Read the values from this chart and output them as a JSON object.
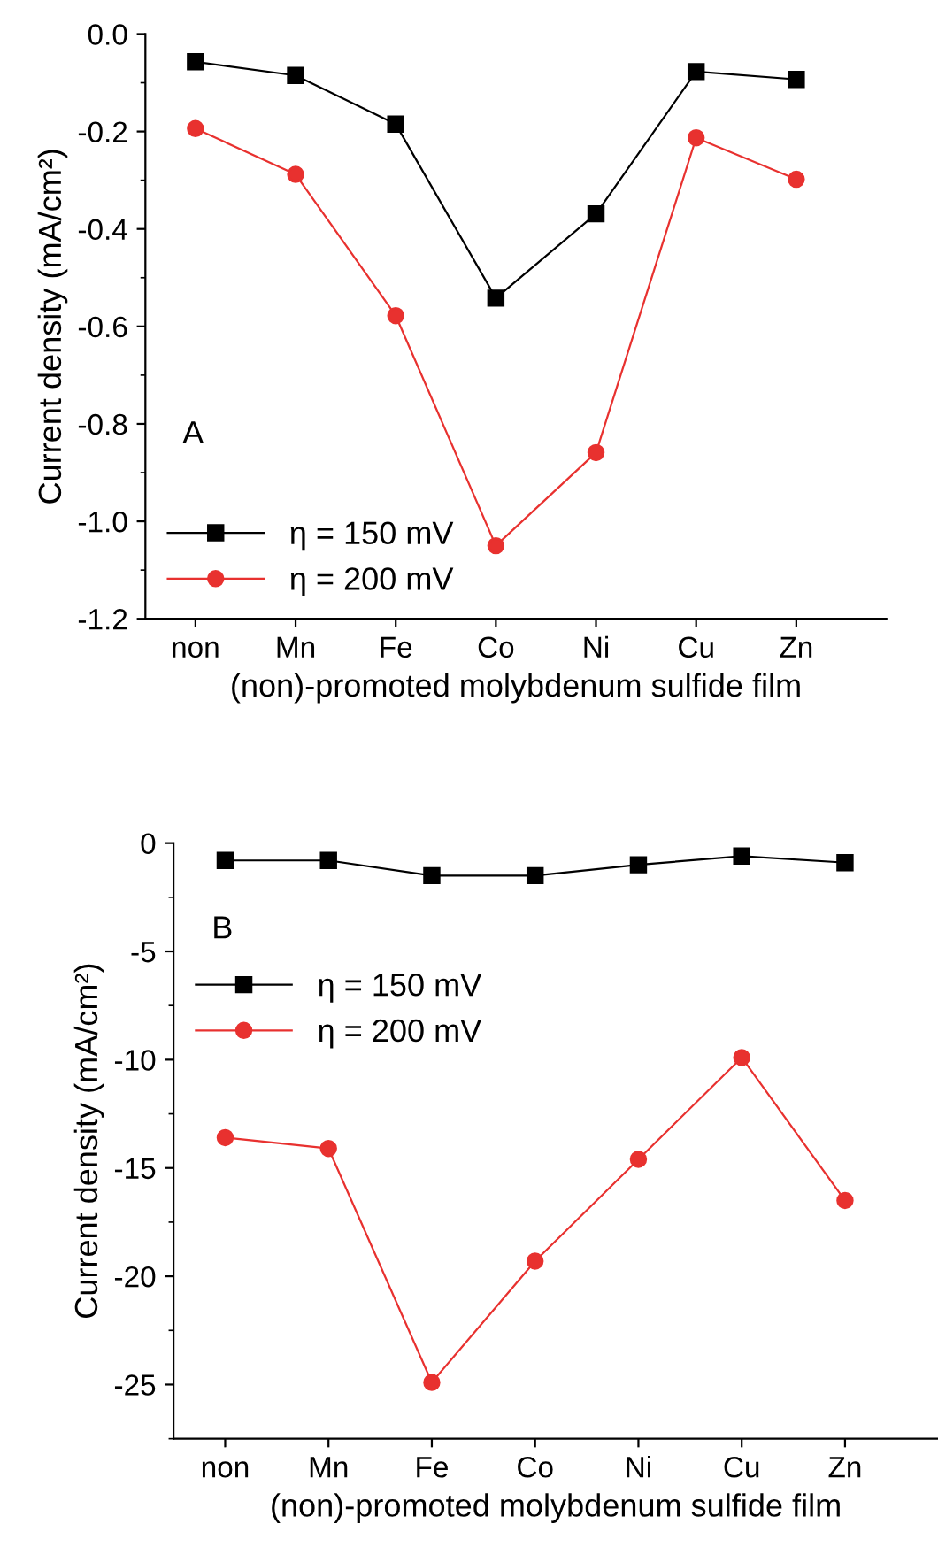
{
  "chart_data": [
    {
      "type": "line",
      "xlabel": "(non)-promoted molybdenum sulfide film",
      "ylabel": "Current density (mA/cm²)",
      "categories": [
        "non",
        "Mn",
        "Fe",
        "Co",
        "Ni",
        "Cu",
        "Zn"
      ],
      "series": [
        {
          "name": "η = 150 mV",
          "color": "#000000",
          "marker": "square",
          "values": [
            -0.057,
            -0.085,
            -0.185,
            -0.542,
            -0.369,
            -0.077,
            -0.093
          ]
        },
        {
          "name": "η = 200 mV",
          "color": "#e8312f",
          "marker": "circle",
          "values": [
            -0.194,
            -0.288,
            -0.578,
            -1.05,
            -0.859,
            -0.213,
            -0.298
          ]
        }
      ],
      "ylim": [
        -1.2,
        0.0
      ],
      "yticks": [
        {
          "value": 0.0,
          "label": "0.0"
        },
        {
          "value": -0.2,
          "label": "-0.2"
        },
        {
          "value": -0.4,
          "label": "-0.4"
        },
        {
          "value": -0.6,
          "label": "-0.6"
        },
        {
          "value": -0.8,
          "label": "-0.8"
        },
        {
          "value": -1.0,
          "label": "-1.0"
        },
        {
          "value": -1.2,
          "label": "-1.2"
        }
      ],
      "annotations": [
        "A"
      ],
      "legend": "bottom left",
      "grid": false,
      "line_style": "solid"
    },
    {
      "type": "line",
      "xlabel": "(non)-promoted molybdenum sulfide film",
      "ylabel": "Current density (mA/cm²)",
      "categories": [
        "non",
        "Mn",
        "Fe",
        "Co",
        "Ni",
        "Cu",
        "Zn"
      ],
      "series": [
        {
          "name": "η = 150 mV",
          "color": "#000000",
          "marker": "square",
          "values": [
            -0.8,
            -0.8,
            -1.5,
            -1.5,
            -1.0,
            -0.6,
            -0.9
          ]
        },
        {
          "name": "η = 200 mV",
          "color": "#e8312f",
          "marker": "circle",
          "values": [
            -13.6,
            -14.1,
            -24.9,
            -19.3,
            -14.6,
            -9.9,
            -16.5
          ]
        }
      ],
      "ylim": [
        -27.5,
        0
      ],
      "yticks": [
        0,
        {
          "value": -5,
          "label": "-5"
        },
        {
          "value": -10,
          "label": "-10"
        },
        {
          "value": -15,
          "label": "-15"
        },
        {
          "value": -20,
          "label": "-20"
        },
        {
          "value": -25,
          "label": "-25"
        }
      ],
      "annotations": [
        "B"
      ],
      "legend": "top left",
      "grid": false,
      "line_style": "solid"
    }
  ]
}
